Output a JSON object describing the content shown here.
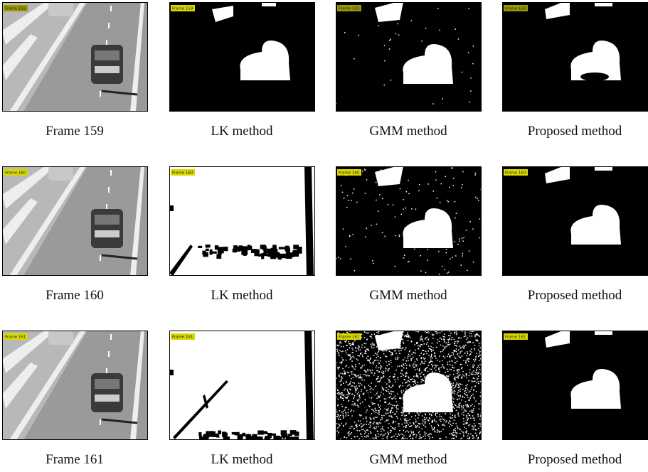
{
  "rows": [
    {
      "cells": [
        {
          "tag": "Frame 159",
          "caption": "Frame 159"
        },
        {
          "tag": "Frame 159",
          "caption": "LK method"
        },
        {
          "tag": "Frame 159",
          "caption": "GMM method"
        },
        {
          "tag": "Frame 159",
          "caption": "Proposed method"
        }
      ]
    },
    {
      "cells": [
        {
          "tag": "Frame 160",
          "caption": "Frame 160"
        },
        {
          "tag": "Frame 160",
          "caption": "LK method"
        },
        {
          "tag": "Frame 160",
          "caption": "GMM method"
        },
        {
          "tag": "Frame 160",
          "caption": "Proposed method"
        }
      ]
    },
    {
      "cells": [
        {
          "tag": "Frame 161",
          "caption": "Frame 161"
        },
        {
          "tag": "Frame 161",
          "caption": "LK method"
        },
        {
          "tag": "Frame 161",
          "caption": "GMM method"
        },
        {
          "tag": "Frame 161",
          "caption": "Proposed method"
        }
      ]
    }
  ]
}
